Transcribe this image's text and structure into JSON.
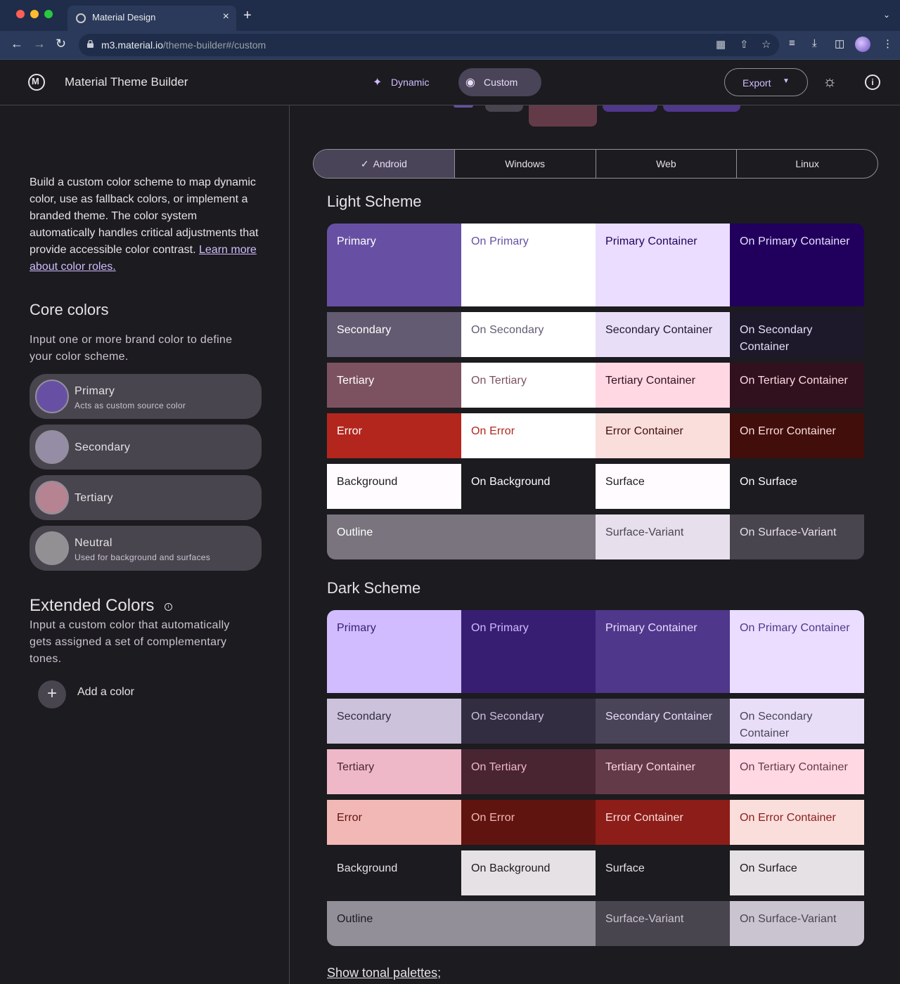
{
  "browser": {
    "tab_title": "Material Design",
    "tab_close": "×",
    "new_tab": "+",
    "url_host": "m3.material.io",
    "url_path": "/theme-builder#/custom",
    "back": "←",
    "forward": "→",
    "reload": "↻"
  },
  "header": {
    "app_title": "Material Theme Builder",
    "modes": [
      {
        "label": "Dynamic",
        "icon": "sparkle-icon"
      },
      {
        "label": "Custom",
        "icon": "palette-icon"
      }
    ],
    "export_label": "Export"
  },
  "sidebar": {
    "description": "Build a custom color scheme to map dynamic color, use as fallback colors, or implement a branded theme. The color system automatically handles critical adjustments that provide accessible color contrast. ",
    "learn_more": "Learn more about color roles.",
    "core_title": "Core colors",
    "core_subtitle": "Input one or more brand color to define your color scheme.",
    "core_colors": [
      {
        "name": "Primary",
        "sub": "Acts as custom source color",
        "color": "#6750a4"
      },
      {
        "name": "Secondary",
        "sub": "",
        "color": "#958da5"
      },
      {
        "name": "Tertiary",
        "sub": "",
        "color": "#b58392"
      },
      {
        "name": "Neutral",
        "sub": "Used for background and surfaces",
        "color": "#939094"
      }
    ],
    "ext_title": "Extended Colors",
    "ext_subtitle": "Input a custom color that automatically gets assigned a set of complementary tones.",
    "add_color": "Add a color"
  },
  "platforms": [
    "Android",
    "Windows",
    "Web",
    "Linux"
  ],
  "platform_check": "✓",
  "light_title": "Light Scheme",
  "dark_title": "Dark Scheme",
  "show_tonal": "Show tonal palettes;",
  "light_rows": [
    {
      "height": 118,
      "cells": [
        {
          "label": "Primary",
          "bg": "#6750a4",
          "fg": "#ffffff"
        },
        {
          "label": "On Primary",
          "bg": "#ffffff",
          "fg": "#6750a4"
        },
        {
          "label": "Primary Container",
          "bg": "#eaddff",
          "fg": "#21005d"
        },
        {
          "label": "On Primary Container",
          "bg": "#21005d",
          "fg": "#eaddff"
        }
      ]
    },
    {
      "height": 64,
      "cells": [
        {
          "label": "Secondary",
          "bg": "#625b71",
          "fg": "#ffffff"
        },
        {
          "label": "On Secondary",
          "bg": "#ffffff",
          "fg": "#625b71"
        },
        {
          "label": "Secondary Container",
          "bg": "#e8def8",
          "fg": "#1d192b"
        },
        {
          "label": "On Secondary Container",
          "bg": "#1d192b",
          "fg": "#e8def8"
        }
      ]
    },
    {
      "height": 64,
      "cells": [
        {
          "label": "Tertiary",
          "bg": "#7d5260",
          "fg": "#ffffff"
        },
        {
          "label": "On Tertiary",
          "bg": "#ffffff",
          "fg": "#7d5260"
        },
        {
          "label": "Tertiary Container",
          "bg": "#ffd8e4",
          "fg": "#31111d"
        },
        {
          "label": "On Tertiary Container",
          "bg": "#31111d",
          "fg": "#ffd8e4"
        }
      ]
    },
    {
      "height": 64,
      "cells": [
        {
          "label": "Error",
          "bg": "#b3261e",
          "fg": "#ffffff"
        },
        {
          "label": "On Error",
          "bg": "#ffffff",
          "fg": "#b3261e"
        },
        {
          "label": "Error Container",
          "bg": "#f9dedc",
          "fg": "#410e0b"
        },
        {
          "label": "On Error Container",
          "bg": "#410e0b",
          "fg": "#f9dedc"
        }
      ]
    },
    {
      "height": 64,
      "cells": [
        {
          "label": "Background",
          "bg": "#fffbfe",
          "fg": "#1c1b1f"
        },
        {
          "label": "On Background",
          "bg": "#1c1b1f",
          "fg": "#fffbfe"
        },
        {
          "label": "Surface",
          "bg": "#fffbfe",
          "fg": "#1c1b1f"
        },
        {
          "label": "On Surface",
          "bg": "#1c1b1f",
          "fg": "#fffbfe"
        }
      ]
    },
    {
      "height": 64,
      "cells": [
        {
          "label": "Outline",
          "bg": "#79747e",
          "fg": "#ffffff",
          "span": 2
        },
        {
          "label": "Surface-Variant",
          "bg": "#e7e0ec",
          "fg": "#49454f"
        },
        {
          "label": "On Surface-Variant",
          "bg": "#49454f",
          "fg": "#e7e0ec"
        }
      ]
    }
  ],
  "dark_rows": [
    {
      "height": 118,
      "cells": [
        {
          "label": "Primary",
          "bg": "#d0bcff",
          "fg": "#381e72"
        },
        {
          "label": "On Primary",
          "bg": "#381e72",
          "fg": "#d0bcff"
        },
        {
          "label": "Primary Container",
          "bg": "#4f378b",
          "fg": "#eaddff"
        },
        {
          "label": "On Primary Container",
          "bg": "#eaddff",
          "fg": "#4f378b"
        }
      ]
    },
    {
      "height": 64,
      "cells": [
        {
          "label": "Secondary",
          "bg": "#ccc2dc",
          "fg": "#332d41"
        },
        {
          "label": "On Secondary",
          "bg": "#332d41",
          "fg": "#ccc2dc"
        },
        {
          "label": "Secondary Container",
          "bg": "#4a4458",
          "fg": "#e8def8"
        },
        {
          "label": "On Secondary Container",
          "bg": "#e8def8",
          "fg": "#4a4458"
        }
      ]
    },
    {
      "height": 64,
      "cells": [
        {
          "label": "Tertiary",
          "bg": "#efb8c8",
          "fg": "#492532"
        },
        {
          "label": "On Tertiary",
          "bg": "#492532",
          "fg": "#efb8c8"
        },
        {
          "label": "Tertiary Container",
          "bg": "#633b48",
          "fg": "#ffd8e4"
        },
        {
          "label": "On Tertiary Container",
          "bg": "#ffd8e4",
          "fg": "#633b48"
        }
      ]
    },
    {
      "height": 64,
      "cells": [
        {
          "label": "Error",
          "bg": "#f2b8b5",
          "fg": "#601410"
        },
        {
          "label": "On Error",
          "bg": "#601410",
          "fg": "#f2b8b5"
        },
        {
          "label": "Error Container",
          "bg": "#8c1d18",
          "fg": "#f9dedc"
        },
        {
          "label": "On Error Container",
          "bg": "#f9dedc",
          "fg": "#8c1d18"
        }
      ]
    },
    {
      "height": 64,
      "cells": [
        {
          "label": "Background",
          "bg": "#1c1b1f",
          "fg": "#e6e1e5"
        },
        {
          "label": "On Background",
          "bg": "#e6e1e5",
          "fg": "#1c1b1f"
        },
        {
          "label": "Surface",
          "bg": "#1c1b1f",
          "fg": "#e6e1e5"
        },
        {
          "label": "On Surface",
          "bg": "#e6e1e5",
          "fg": "#1c1b1f"
        }
      ]
    },
    {
      "height": 64,
      "cells": [
        {
          "label": "Outline",
          "bg": "#938f99",
          "fg": "#1c1b1f",
          "span": 2
        },
        {
          "label": "Surface-Variant",
          "bg": "#49454f",
          "fg": "#cac4d0"
        },
        {
          "label": "On Surface-Variant",
          "bg": "#cac4d0",
          "fg": "#49454f"
        }
      ]
    }
  ]
}
